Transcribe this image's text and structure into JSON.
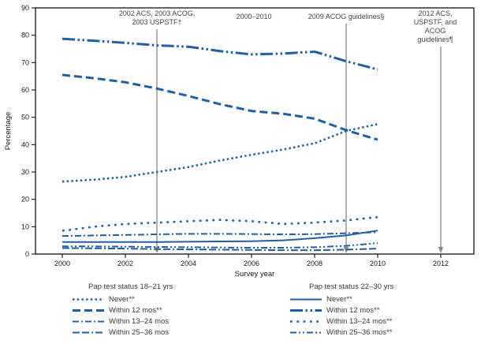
{
  "figure": {
    "y_axis_label": "Percentage",
    "x_axis_label": "Survey year"
  },
  "colors": {
    "line_blue": "#1f5fa8",
    "guide_gray": "#8a897c",
    "text_dark": "#3d3b30",
    "axis_black": "#000000"
  },
  "chart_data": {
    "type": "line",
    "title": "",
    "xlabel": "Survey year",
    "ylabel": "Percentage",
    "ylim": [
      0,
      90
    ],
    "yticks": [
      0,
      10,
      20,
      30,
      40,
      50,
      60,
      70,
      80,
      90
    ],
    "xticks": [
      2000,
      2002,
      2004,
      2006,
      2008,
      2010,
      2012
    ],
    "xlim": [
      1999.15,
      2013.05
    ],
    "grid": false,
    "x": [
      2000,
      2001,
      2002,
      2003,
      2004,
      2005,
      2006,
      2007,
      2008,
      2009,
      2010
    ],
    "series": [
      {
        "name": "never-18-21",
        "label": "Never**",
        "group": 0,
        "dash": "2.5 3.2",
        "width": 2.5,
        "values": [
          26.5,
          27.2,
          28.2,
          30.0,
          31.8,
          34.2,
          36.3,
          38.2,
          40.5,
          45.0,
          47.5
        ]
      },
      {
        "name": "within-12-mos-18-21",
        "label": "Within 12 mos**",
        "group": 0,
        "dash": "10 5",
        "width": 3,
        "values": [
          65.5,
          64.3,
          62.8,
          60.5,
          57.8,
          54.8,
          52.3,
          51.3,
          49.5,
          45.3,
          41.8
        ]
      },
      {
        "name": "within-13-24-mos-18-21",
        "label": "Within 13–24 mos",
        "group": 0,
        "dash": "8 3 2 3",
        "width": 2,
        "values": [
          6.6,
          6.8,
          7.0,
          7.2,
          7.4,
          7.4,
          7.3,
          7.2,
          7.3,
          7.6,
          8.0
        ]
      },
      {
        "name": "within-25-36-mos-18-21",
        "label": "Within 25–36 mos",
        "group": 0,
        "dash": "9 3 9 3 2 3",
        "width": 2,
        "values": [
          2.2,
          2.1,
          2.0,
          1.8,
          1.7,
          1.6,
          1.5,
          1.4,
          1.4,
          1.6,
          2.0
        ]
      },
      {
        "name": "never-22-30",
        "label": "Never**",
        "group": 1,
        "dash": "",
        "width": 2,
        "values": [
          4.4,
          4.4,
          4.4,
          4.4,
          4.5,
          4.6,
          4.7,
          5.0,
          5.8,
          6.8,
          8.6
        ]
      },
      {
        "name": "within-12-mos-22-30",
        "label": "Within 12 mos**",
        "group": 1,
        "dash": "16 3.5 2.5 3.5 2.5 3.5",
        "width": 3,
        "values": [
          78.7,
          78.0,
          77.2,
          76.3,
          75.8,
          74.2,
          73.0,
          73.3,
          74.0,
          70.5,
          67.5
        ]
      },
      {
        "name": "within-13-24-mos-22-30",
        "label": "Within 13–24 mos**",
        "group": 1,
        "dash": "2.8 5.5",
        "width": 2.5,
        "values": [
          8.5,
          10.0,
          11.0,
          11.5,
          12.0,
          12.5,
          12.0,
          11.0,
          11.5,
          12.3,
          13.5
        ]
      },
      {
        "name": "within-25-36-mos-22-30",
        "label": "Within 25–36 mos**",
        "group": 1,
        "dash": "8 3 2 3 2 3",
        "width": 2,
        "values": [
          2.8,
          2.8,
          2.7,
          2.6,
          2.5,
          2.4,
          2.3,
          2.3,
          2.5,
          3.0,
          4.0
        ]
      }
    ],
    "legend": {
      "position": "bottom",
      "groups": [
        {
          "title": "Pap test status 18–21 yrs",
          "series": [
            0,
            1,
            2,
            3
          ]
        },
        {
          "title": "Pap test status 22–30 yrs",
          "series": [
            4,
            5,
            6,
            7
          ]
        }
      ]
    },
    "annotations": [
      {
        "text": "2002 ACS, 2003 ACOG,\n2003 USPSTF†",
        "year": 2003,
        "line": true
      },
      {
        "text": "2000–2010",
        "year": 2006.1,
        "line": false
      },
      {
        "text": "2009 ACOG guidelines§",
        "year": 2009,
        "line": true
      },
      {
        "text": "2012 ACS, USPSTF, and\nACOG guidelines¶",
        "year": 2012,
        "line": true
      }
    ]
  }
}
